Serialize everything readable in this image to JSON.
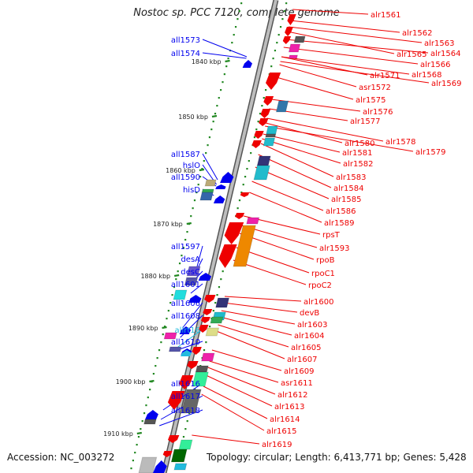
{
  "title": "Nostoc sp. PCC 7120, complete genome",
  "footer": {
    "accession_label": "Accession:",
    "accession": "NC_003272",
    "topology_label": "Topology:",
    "topology": "circular",
    "length_label": "Length:",
    "length": "6,413,771 bp",
    "genes_label": "Genes:",
    "genes": "5,428"
  },
  "colors": {
    "forward_gene": "#ee0000",
    "reverse_gene": "#0000ee",
    "highlight_gene": "#22bbdd",
    "backbone": "#888888",
    "tick": "#228822"
  },
  "ticks": [
    "1840 kbp",
    "1850 kbp",
    "1860 kbp",
    "1870 kbp",
    "1880 kbp",
    "1890 kbp",
    "1900 kbp",
    "1910 kbp"
  ],
  "left_labels": [
    "all1573",
    "all1574",
    "all1587",
    "hslO",
    "all1590",
    "hisD",
    "all1597",
    "desA",
    "desC",
    "all1601",
    "all1606",
    "all1608",
    "allrt16",
    "all1610",
    "all1616",
    "all1617",
    "all1618"
  ],
  "right_labels": [
    "alr1561",
    "alr1562",
    "alr1563",
    "alr1565",
    "alr1564",
    "alr1566",
    "alr1568",
    "alr1571",
    "alr1569",
    "asr1572",
    "alr1575",
    "alr1576",
    "alr1577",
    "alr1578",
    "alr1580",
    "alr1579",
    "alr1581",
    "alr1582",
    "alr1583",
    "alr1584",
    "alr1585",
    "alr1586",
    "alr1589",
    "rpsT",
    "alr1593",
    "rpoB",
    "rpoC1",
    "rpoC2",
    "alr1600",
    "devB",
    "alr1603",
    "alr1604",
    "alr1605",
    "alr1607",
    "alr1609",
    "asr1611",
    "alr1612",
    "alr1613",
    "alr1614",
    "alr1615",
    "alr1619"
  ]
}
